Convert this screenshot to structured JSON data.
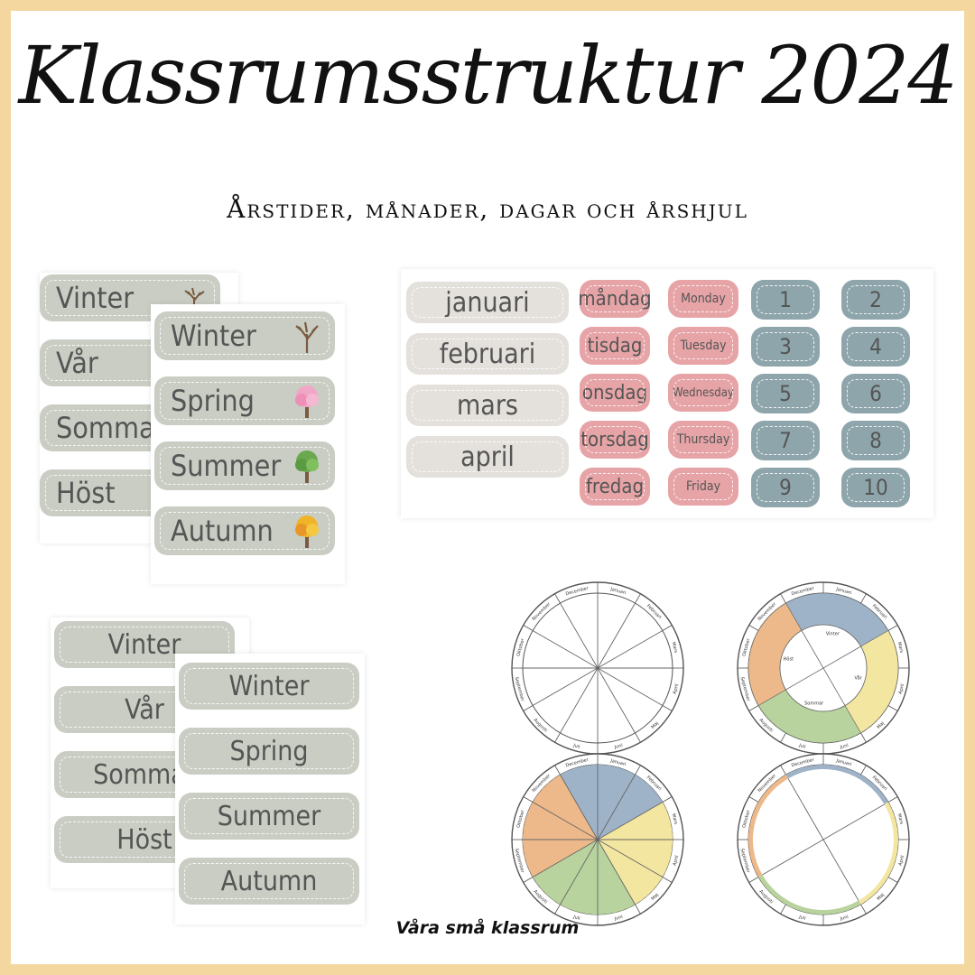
{
  "header": {
    "title": "Klassrumsstruktur 2024",
    "subtitle": "Årstider, månader, dagar och årshjul"
  },
  "seasons_sv": [
    "Vinter",
    "Vår",
    "Sommar",
    "Höst"
  ],
  "seasons_en": [
    "Winter",
    "Spring",
    "Summer",
    "Autumn"
  ],
  "months": [
    "januari",
    "februari",
    "mars",
    "april"
  ],
  "days_sv": [
    "måndag",
    "tisdag",
    "onsdag",
    "torsdag",
    "fredag"
  ],
  "days_en": [
    "Monday",
    "Tuesday",
    "Wednesday",
    "Thursday",
    "Friday"
  ],
  "numbers": [
    "1",
    "2",
    "3",
    "4",
    "5",
    "6",
    "7",
    "8",
    "9",
    "10"
  ],
  "wheel_months": [
    "Januari",
    "Februari",
    "Mars",
    "April",
    "Maj",
    "Juni",
    "Juli",
    "Augusti",
    "September",
    "Oktober",
    "November",
    "December"
  ],
  "wheel_seasons": [
    "Vinter",
    "Vår",
    "Sommar",
    "Höst"
  ],
  "colors": {
    "winter": "#9fb3c8",
    "spring": "#f2e6a0",
    "summer": "#b8d39e",
    "autumn": "#edb98a",
    "frame": "#f3d79f"
  },
  "footer": {
    "brand": "Våra små klassrum"
  }
}
